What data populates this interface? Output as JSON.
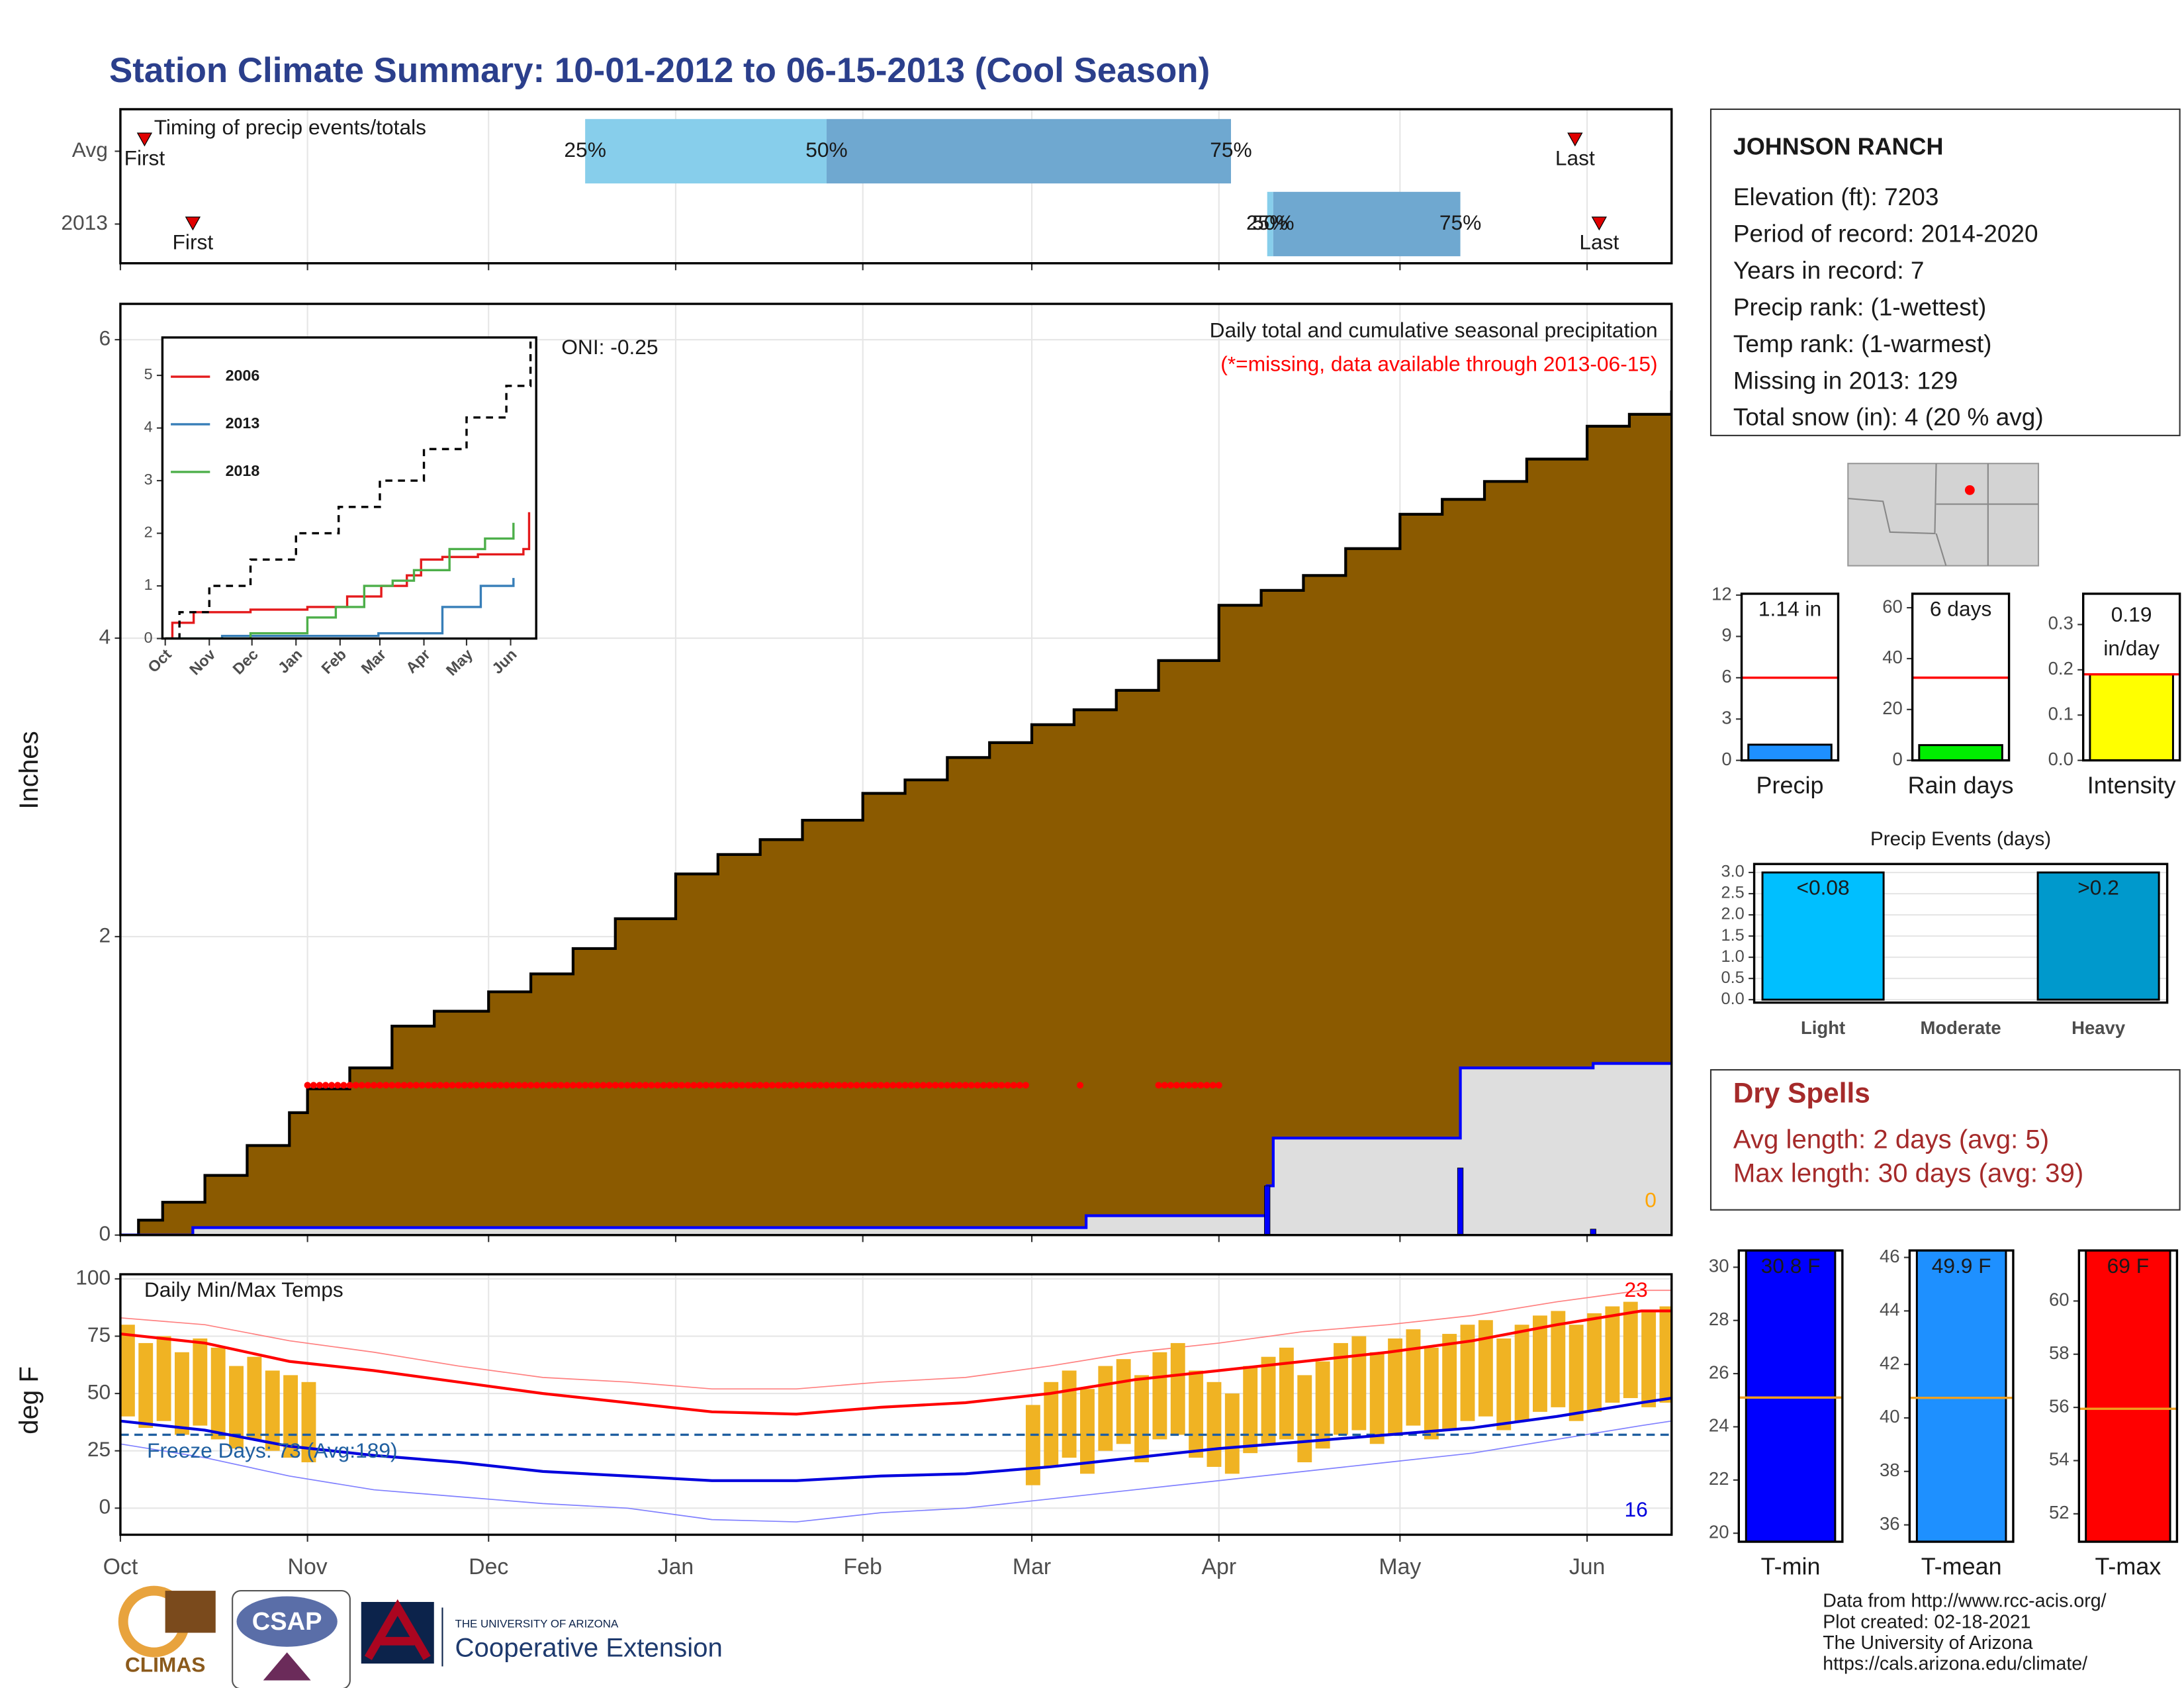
{
  "title": "Station Climate Summary: 10-01-2012 to 06-15-2013 (Cool Season)",
  "chart_data": [
    {
      "type": "timing",
      "subtitle": "Timing of precip events/totals",
      "categories": [
        "Avg",
        "2013"
      ],
      "xlim": [
        0,
        257
      ],
      "xticks": [
        0,
        31,
        61,
        92,
        123,
        151,
        182,
        212,
        243
      ],
      "grid": true,
      "labels": {
        "first": "First",
        "last": "Last",
        "p25": "25%",
        "p50": "50%",
        "p75": "75%"
      },
      "colors": {
        "lower": "#87ceeb",
        "upper": "#6fa8d0",
        "marker": "#e00000"
      },
      "events": [
        {
          "first": 4,
          "p25": 77,
          "p50": 117,
          "p75": 184,
          "last": 241
        },
        {
          "first": 12,
          "p25": 190,
          "p50": 191,
          "p75": 222,
          "last": 245
        }
      ]
    },
    {
      "type": "area_step",
      "ylabel": "Inches",
      "subtitle": "Daily total and cumulative seasonal precipitation",
      "note": "(*=missing, data available through 2013-06-15)",
      "oni": "ONI: -0.25",
      "zero_label": "0",
      "xlim": [
        0,
        257
      ],
      "ylim": [
        0,
        6.24
      ],
      "xticks": [
        0,
        31,
        61,
        92,
        123,
        151,
        182,
        212,
        243
      ],
      "yticks": [
        0,
        2,
        4,
        6
      ],
      "grid": true,
      "series": [
        {
          "color": "#8b5a00",
          "outline": "#000000",
          "x": [
            0,
            3,
            7,
            14,
            21,
            28,
            31,
            38,
            45,
            52,
            61,
            68,
            75,
            82,
            92,
            99,
            106,
            113,
            123,
            130,
            137,
            144,
            151,
            158,
            165,
            172,
            182,
            189,
            196,
            203,
            212,
            219,
            226,
            233,
            243,
            250,
            257
          ],
          "values": [
            0,
            0.1,
            0.22,
            0.4,
            0.6,
            0.82,
            0.98,
            1.12,
            1.4,
            1.5,
            1.63,
            1.75,
            1.92,
            2.12,
            2.42,
            2.55,
            2.65,
            2.78,
            2.96,
            3.05,
            3.2,
            3.3,
            3.42,
            3.52,
            3.65,
            3.85,
            4.22,
            4.32,
            4.42,
            4.6,
            4.83,
            4.93,
            5.05,
            5.2,
            5.42,
            5.5,
            5.66
          ]
        },
        {
          "color": "#dedede",
          "outline": "#0000ff",
          "x": [
            0,
            12,
            160,
            190,
            191,
            222,
            244
          ],
          "values": [
            0,
            0.05,
            0.13,
            0.33,
            0.65,
            1.12,
            1.15
          ]
        }
      ],
      "daily": {
        "color": "#0000ff",
        "x": [
          190,
          222,
          244
        ],
        "values": [
          0.33,
          0.45,
          0.04
        ]
      },
      "missing_ranges": [
        [
          31,
          150
        ],
        [
          159,
          159
        ],
        [
          172,
          182
        ]
      ],
      "missing_color": "#ff0000"
    },
    {
      "type": "line",
      "xlim": [
        -2,
        261
      ],
      "ylim": [
        0,
        5.72
      ],
      "yticks": [
        0,
        1,
        2,
        3,
        4,
        5
      ],
      "xticks": [
        {
          "value": 0,
          "label": "Oct"
        },
        {
          "value": 31,
          "label": "Nov"
        },
        {
          "value": 61,
          "label": "Dec"
        },
        {
          "value": 92,
          "label": "Jan"
        },
        {
          "value": 123,
          "label": "Feb"
        },
        {
          "value": 151,
          "label": "Mar"
        },
        {
          "value": 182,
          "label": "Apr"
        },
        {
          "value": 212,
          "label": "May"
        },
        {
          "value": 243,
          "label": "Jun"
        }
      ],
      "series": [
        {
          "name": "2006",
          "color": "#e41a1c",
          "x": [
            0,
            5,
            20,
            60,
            100,
            128,
            152,
            170,
            180,
            195,
            220,
            252,
            256
          ],
          "values": [
            0,
            0.3,
            0.5,
            0.55,
            0.6,
            0.8,
            1.0,
            1.2,
            1.5,
            1.55,
            1.6,
            1.7,
            2.4
          ]
        },
        {
          "name": "2013",
          "color": "#377eb8",
          "x": [
            0,
            40,
            150,
            185,
            195,
            222,
            245
          ],
          "values": [
            0,
            0.05,
            0.1,
            0.1,
            0.6,
            1.0,
            1.15
          ]
        },
        {
          "name": "2018",
          "color": "#4daf4a",
          "x": [
            0,
            60,
            100,
            120,
            140,
            160,
            175,
            200,
            225,
            245
          ],
          "values": [
            0,
            0.1,
            0.4,
            0.6,
            1.0,
            1.1,
            1.3,
            1.7,
            1.9,
            2.2
          ]
        },
        {
          "color": "#000000",
          "dashed": true,
          "x": [
            0,
            10,
            31,
            60,
            92,
            122,
            151,
            182,
            212,
            240,
            257
          ],
          "values": [
            0,
            0.5,
            1.0,
            1.5,
            2.0,
            2.5,
            3.0,
            3.6,
            4.2,
            4.8,
            5.66
          ]
        }
      ]
    },
    {
      "type": "temperature",
      "ylabel": "deg F",
      "subtitle": "Daily Min/Max Temps",
      "freeze_label": "Freeze Days: 73 (Avg:189)",
      "max_count": "23",
      "min_count": "16",
      "xlim": [
        0,
        257
      ],
      "ylim": [
        -11.6,
        102
      ],
      "yticks": [
        0,
        25,
        50,
        75,
        100
      ],
      "freeze_line": 32,
      "grid": true,
      "xticks": [
        {
          "value": 0,
          "label": "Oct"
        },
        {
          "value": 31,
          "label": "Nov"
        },
        {
          "value": 61,
          "label": "Dec"
        },
        {
          "value": 92,
          "label": "Jan"
        },
        {
          "value": 123,
          "label": "Feb"
        },
        {
          "value": 151,
          "label": "Mar"
        },
        {
          "value": 182,
          "label": "Apr"
        },
        {
          "value": 212,
          "label": "May"
        },
        {
          "value": 243,
          "label": "Jun"
        }
      ],
      "series": [
        {
          "color": "#ff8080",
          "width": 0.8,
          "x": [
            0,
            14,
            28,
            42,
            56,
            70,
            84,
            98,
            112,
            126,
            140,
            154,
            168,
            182,
            196,
            210,
            224,
            238,
            252,
            257
          ],
          "values": [
            83,
            80,
            73,
            68,
            62,
            57,
            55,
            52,
            52,
            55,
            57,
            62,
            68,
            72,
            77,
            80,
            84,
            90,
            95,
            95
          ]
        },
        {
          "color": "#8080ff",
          "width": 0.8,
          "x": [
            0,
            14,
            28,
            42,
            56,
            70,
            84,
            98,
            112,
            126,
            140,
            154,
            168,
            182,
            196,
            210,
            224,
            238,
            252,
            257
          ],
          "values": [
            28,
            22,
            14,
            8,
            5,
            2,
            0,
            -5,
            -6,
            -2,
            0,
            4,
            8,
            12,
            16,
            20,
            24,
            30,
            36,
            38
          ]
        }
      ],
      "bars": {
        "color": "#f0b323",
        "x": [
          0,
          3,
          6,
          9,
          12,
          15,
          18,
          21,
          24,
          27,
          30,
          150,
          153,
          156,
          159,
          162,
          165,
          168,
          171,
          174,
          177,
          180,
          183,
          186,
          189,
          192,
          195,
          198,
          201,
          204,
          207,
          210,
          213,
          216,
          219,
          222,
          225,
          228,
          231,
          234,
          237,
          240,
          243,
          246,
          249,
          252,
          255
        ],
        "high": [
          80,
          72,
          75,
          68,
          74,
          70,
          62,
          66,
          60,
          58,
          55,
          45,
          55,
          60,
          52,
          62,
          65,
          58,
          68,
          72,
          60,
          55,
          50,
          62,
          66,
          70,
          58,
          64,
          72,
          75,
          68,
          74,
          78,
          70,
          76,
          80,
          82,
          74,
          80,
          84,
          86,
          80,
          85,
          88,
          90,
          86,
          88
        ],
        "low": [
          40,
          35,
          38,
          32,
          36,
          30,
          26,
          30,
          25,
          22,
          20,
          10,
          18,
          22,
          15,
          25,
          28,
          20,
          30,
          32,
          22,
          18,
          15,
          24,
          28,
          30,
          20,
          26,
          32,
          34,
          28,
          32,
          36,
          30,
          34,
          38,
          40,
          34,
          38,
          42,
          44,
          38,
          42,
          46,
          48,
          44,
          46
        ]
      },
      "averages": [
        {
          "color": "#ff0000",
          "width": 2,
          "x": [
            0,
            14,
            28,
            42,
            56,
            70,
            84,
            98,
            112,
            126,
            140,
            154,
            168,
            182,
            196,
            210,
            224,
            238,
            252,
            257
          ],
          "values": [
            76,
            72,
            64,
            60,
            55,
            50,
            46,
            42,
            41,
            44,
            46,
            50,
            56,
            60,
            64,
            68,
            73,
            80,
            86,
            86
          ]
        },
        {
          "color": "#0000dd",
          "width": 2,
          "x": [
            0,
            14,
            28,
            42,
            56,
            70,
            84,
            98,
            112,
            126,
            140,
            154,
            168,
            182,
            196,
            210,
            224,
            238,
            252,
            257
          ],
          "values": [
            38,
            34,
            27,
            23,
            20,
            16,
            14,
            12,
            12,
            14,
            15,
            18,
            22,
            26,
            29,
            32,
            35,
            40,
            46,
            48
          ]
        }
      ]
    },
    {
      "type": "bar",
      "categories": [
        "Precip"
      ],
      "values": [
        1.14
      ],
      "value_labels": [
        "1.14 in"
      ],
      "color": "#1e90ff",
      "average": 6,
      "average_color": "#ff0000",
      "ylim": [
        0,
        12.1
      ],
      "yticks": [
        0,
        3,
        6,
        9,
        12
      ]
    },
    {
      "type": "bar",
      "categories": [
        "Rain days"
      ],
      "values": [
        6
      ],
      "value_labels": [
        "6 days"
      ],
      "color": "#00ee00",
      "average": 32.5,
      "average_color": "#ff0000",
      "ylim": [
        0,
        65.5
      ],
      "yticks": [
        0,
        20,
        40,
        60
      ]
    },
    {
      "type": "bar",
      "categories": [
        "Intensity"
      ],
      "values": [
        0.19
      ],
      "value_labels": [
        [
          "0.19",
          "in/day"
        ]
      ],
      "color": "#ffff00",
      "average": 0.19,
      "average_color": "#ff0000",
      "ylim": [
        0,
        0.368
      ],
      "yticks": [
        {
          "value": 0,
          "label": "0.0"
        },
        0.1,
        0.2,
        0.3
      ]
    },
    {
      "type": "bar",
      "title": "Precip Events (days)",
      "categories": [
        "Light",
        "Moderate",
        "Heavy"
      ],
      "values": [
        3,
        0,
        3
      ],
      "value_labels": [
        "<0.08",
        null,
        ">0.2"
      ],
      "colors": [
        "#00bfff",
        "#888888",
        "#0099cc"
      ],
      "grid": true,
      "ylim": [
        -0.07,
        3.2
      ],
      "yticks": [
        {
          "value": 0,
          "label": "0.0"
        },
        0.5,
        {
          "value": 1,
          "label": "1.0"
        },
        1.5,
        {
          "value": 2,
          "label": "2.0"
        },
        2.5,
        {
          "value": 3,
          "label": "3.0"
        }
      ]
    },
    {
      "type": "bar",
      "categories": [
        "T-min"
      ],
      "values": [
        30.8
      ],
      "value_labels": [
        "30.8 F"
      ],
      "color": "#0000ff",
      "average": 25.1,
      "average_color": "#f0a020",
      "ylim": [
        19.68,
        30.63
      ],
      "yticks": [
        20,
        22,
        24,
        26,
        28,
        30
      ]
    },
    {
      "type": "bar",
      "categories": [
        "T-mean"
      ],
      "values": [
        49.9
      ],
      "value_labels": [
        "49.9 F"
      ],
      "color": "#1e90ff",
      "average": 40.75,
      "average_color": "#f0a020",
      "ylim": [
        35.37,
        46.26
      ],
      "yticks": [
        36,
        38,
        40,
        42,
        44,
        46
      ]
    },
    {
      "type": "bar",
      "categories": [
        "T-max"
      ],
      "values": [
        69
      ],
      "value_labels": [
        "69 F"
      ],
      "color": "#ff0000",
      "average": 55.95,
      "average_color": "#f0a020",
      "ylim": [
        50.95,
        61.9
      ],
      "yticks": [
        52,
        54,
        56,
        58,
        60
      ]
    }
  ],
  "station": {
    "name": "JOHNSON RANCH",
    "lines": [
      "Elevation (ft): 7203",
      "Period of record: 2014-2020",
      "Years in record: 7",
      "Precip rank:  (1-wettest)",
      "Temp rank:  (1-warmest)",
      "Missing in 2013: 129",
      "Total snow (in): 4 (20 % avg)"
    ]
  },
  "dry_spells": {
    "title": "Dry Spells",
    "lines": [
      "Avg length: 2 days (avg: 5)",
      "Max length: 30 days (avg: 39)"
    ]
  },
  "footer": [
    "Data from http://www.rcc-acis.org/",
    "Plot created: 02-18-2021",
    "The University of Arizona",
    "https://cals.arizona.edu/climate/"
  ],
  "logos": [
    "CLIMAS",
    "CSAP",
    "THE UNIVERSITY OF ARIZONA",
    "Cooperative Extension"
  ]
}
